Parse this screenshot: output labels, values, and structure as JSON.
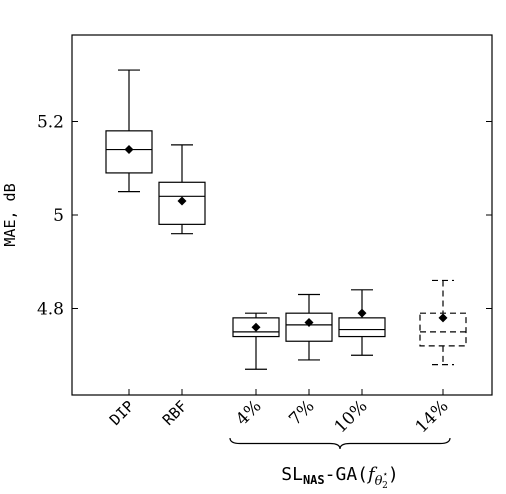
{
  "chart_data": {
    "type": "box",
    "ylabel": "MAE, dB",
    "ylim": [
      4.615,
      5.385
    ],
    "yticks": [
      4.8,
      5,
      5.2
    ],
    "ytick_labels": [
      "4.8",
      "5",
      "5.2"
    ],
    "categories": [
      "DIP",
      "RBF",
      "4%",
      "7%",
      "10%",
      "14%"
    ],
    "boxes": [
      {
        "label": "DIP",
        "min": 5.05,
        "q1": 5.09,
        "median": 5.14,
        "q3": 5.18,
        "max": 5.31,
        "mean": 5.14,
        "style": "solid"
      },
      {
        "label": "RBF",
        "min": 4.96,
        "q1": 4.98,
        "median": 5.04,
        "q3": 5.07,
        "max": 5.15,
        "mean": 5.03,
        "style": "solid"
      },
      {
        "label": "4%",
        "min": 4.67,
        "q1": 4.74,
        "median": 4.75,
        "q3": 4.78,
        "max": 4.79,
        "mean": 4.76,
        "style": "solid"
      },
      {
        "label": "7%",
        "min": 4.69,
        "q1": 4.73,
        "median": 4.765,
        "q3": 4.79,
        "max": 4.83,
        "mean": 4.77,
        "style": "solid"
      },
      {
        "label": "10%",
        "min": 4.7,
        "q1": 4.74,
        "median": 4.755,
        "q3": 4.78,
        "max": 4.84,
        "mean": 4.79,
        "style": "solid"
      },
      {
        "label": "14%",
        "min": 4.68,
        "q1": 4.72,
        "median": 4.75,
        "q3": 4.79,
        "max": 4.86,
        "mean": 4.78,
        "style": "dashed"
      }
    ],
    "group_label": {
      "prefix": "SL",
      "subscript": "NAS",
      "suffix": "-GA(",
      "func": "f",
      "func_sub": "θ",
      "func_sub_sup": "⋆",
      "func_sub_sub": "2",
      "close": ")",
      "covers": [
        "4%",
        "7%",
        "10%",
        "14%"
      ]
    }
  }
}
